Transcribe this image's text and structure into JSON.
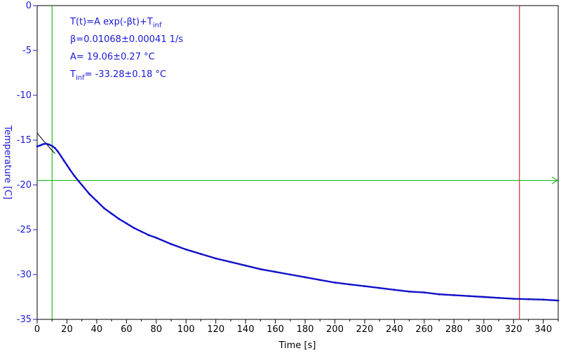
{
  "colors": {
    "data": "#1010c8",
    "fit": "#000000",
    "y_axis": "#1a1ad6",
    "x_axis": "#000000",
    "green_marker": "#00b000",
    "red_marker": "#d00000"
  },
  "fit_box": {
    "formula": "T(t)=A exp(-βt)+T",
    "formula_sub": "inf",
    "beta": "β=0.01068±0.00041 1/s",
    "amp": "A= 19.06±0.27 °C",
    "tinf_prefix": "T",
    "tinf_sub": "inf",
    "tinf_value": "= -33.28±0.18 °C"
  },
  "chart_data": {
    "type": "line",
    "xlabel": "Time [s]",
    "ylabel": "Temperature [C]",
    "xlim": [
      0,
      350
    ],
    "ylim": [
      -35,
      0
    ],
    "xticks": [
      0,
      20,
      40,
      60,
      80,
      100,
      120,
      140,
      160,
      180,
      200,
      220,
      240,
      260,
      280,
      300,
      320,
      340
    ],
    "yticks": [
      0,
      -5,
      -10,
      -15,
      -20,
      -25,
      -30,
      -35
    ],
    "grid": false,
    "fit": {
      "A": 19.06,
      "beta": 0.01068,
      "T_inf": -33.28,
      "x_range": [
        0,
        12
      ]
    },
    "markers": {
      "vertical_green_x": 10,
      "vertical_red_x": 324,
      "horizontal_green_y": -19.5
    },
    "series": [
      {
        "x": [
          0,
          2,
          4,
          6,
          8,
          10,
          12,
          14,
          16,
          18,
          20,
          22,
          25,
          28,
          30,
          35,
          40,
          45,
          50,
          55,
          60,
          65,
          70,
          75,
          80,
          90,
          100,
          110,
          120,
          130,
          140,
          150,
          160,
          170,
          180,
          190,
          200,
          210,
          220,
          230,
          240,
          250,
          260,
          270,
          280,
          290,
          300,
          310,
          320,
          330,
          340,
          350
        ],
        "values": [
          -15.7,
          -15.6,
          -15.45,
          -15.4,
          -15.5,
          -15.65,
          -15.9,
          -16.3,
          -16.8,
          -17.3,
          -17.8,
          -18.3,
          -19.0,
          -19.6,
          -20.0,
          -21.0,
          -21.8,
          -22.6,
          -23.2,
          -23.8,
          -24.3,
          -24.8,
          -25.2,
          -25.6,
          -25.9,
          -26.6,
          -27.2,
          -27.7,
          -28.2,
          -28.6,
          -29.0,
          -29.4,
          -29.7,
          -30.0,
          -30.3,
          -30.6,
          -30.9,
          -31.1,
          -31.3,
          -31.5,
          -31.7,
          -31.9,
          -32.0,
          -32.2,
          -32.3,
          -32.4,
          -32.5,
          -32.6,
          -32.7,
          -32.75,
          -32.8,
          -32.9
        ]
      }
    ]
  }
}
